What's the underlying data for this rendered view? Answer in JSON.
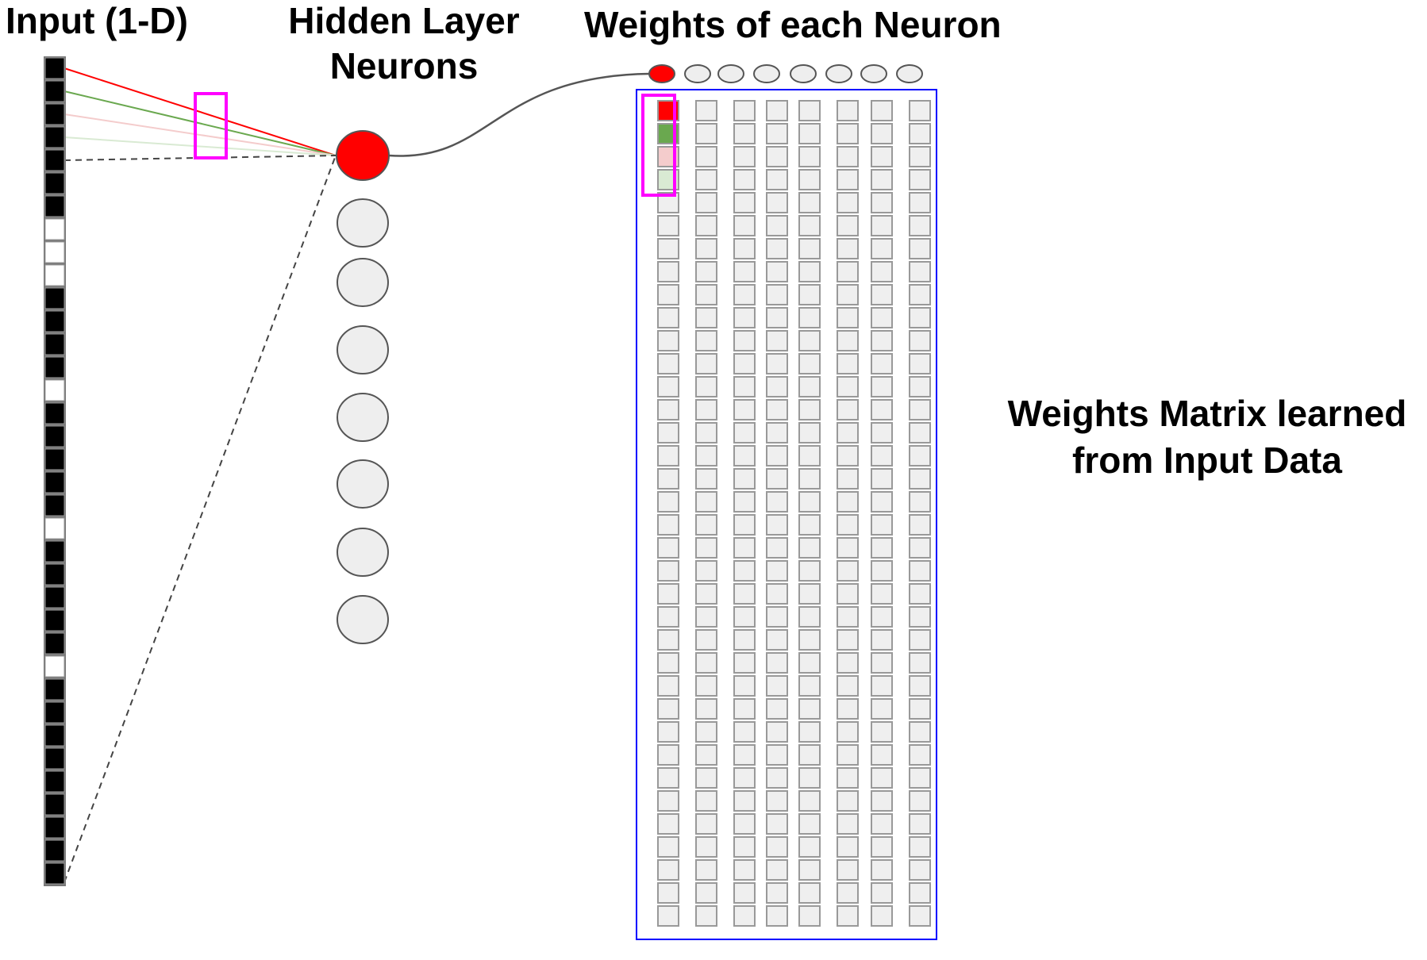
{
  "labels": {
    "input": "Input (1-D)",
    "hidden_line1": "Hidden Layer",
    "hidden_line2": "Neurons",
    "weights_each": "Weights of each Neuron",
    "matrix_line1": "Weights Matrix learned",
    "matrix_line2": "from Input Data"
  },
  "input_vector": {
    "values": [
      1,
      1,
      1,
      1,
      1,
      1,
      1,
      0,
      0,
      0,
      1,
      1,
      1,
      1,
      0,
      1,
      1,
      1,
      1,
      1,
      0,
      1,
      1,
      1,
      1,
      1,
      0,
      1,
      1,
      1,
      1,
      1,
      1,
      1,
      1,
      1
    ]
  },
  "hidden_layer": {
    "neuron_count": 8,
    "active_index": 0
  },
  "weights_matrix": {
    "columns": 8,
    "rows": 36,
    "highlight_column": 0,
    "highlight_rows": [
      0,
      1,
      2,
      3
    ]
  },
  "colors": {
    "active": "#ff0000",
    "weight_red": "#ff0000",
    "weight_green": "#6aa84f",
    "weight_light_red": "#f4cccc",
    "weight_light_green": "#d9ead3",
    "cell_fill": "#efefef",
    "cell_stroke": "#999999",
    "neuron_fill": "#eeeeee",
    "neuron_stroke": "#555555",
    "highlight_box": "#ff00ff",
    "matrix_border": "#0000ff",
    "input_on": "#000000",
    "input_off": "#ffffff",
    "input_stroke": "#999999"
  }
}
